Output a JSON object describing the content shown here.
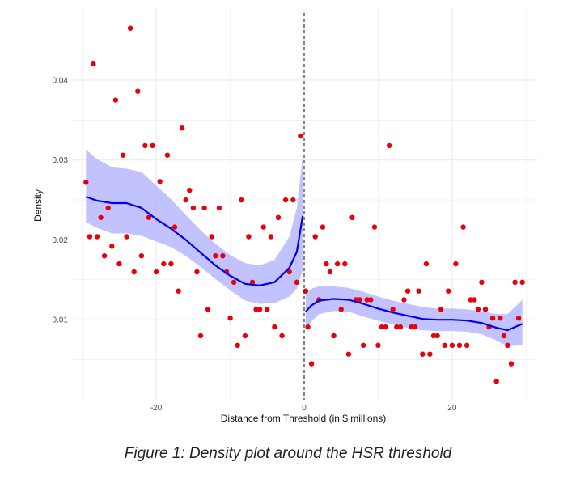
{
  "caption": "Figure 1: Density plot around the HSR threshold",
  "chart_data": {
    "type": "scatter",
    "title": "",
    "xlabel": "Distance from Threshold (in $ millions)",
    "ylabel": "Density",
    "xlim": [
      -31.5,
      31.5
    ],
    "ylim": [
      0.0,
      0.049
    ],
    "x_ticks": [
      -20,
      0,
      20
    ],
    "x_tick_labels": [
      "-20",
      "0",
      "20"
    ],
    "y_ticks": [
      0.01,
      0.02,
      0.03,
      0.04
    ],
    "y_tick_labels": [
      "0.01",
      "0.02",
      "0.03",
      "0.04"
    ],
    "grid": true,
    "cutoff_x": 0,
    "colors": {
      "points": "#e8000b",
      "fit": "#0000ee",
      "band": "#b3b3ff",
      "grid": "#ebebeb",
      "cutoff": "#333333"
    },
    "points": [
      [
        -29.5,
        0.0272
      ],
      [
        -29,
        0.0204
      ],
      [
        -28.5,
        0.042
      ],
      [
        -28,
        0.0204
      ],
      [
        -27.5,
        0.0228
      ],
      [
        -27,
        0.018
      ],
      [
        -26.5,
        0.024
      ],
      [
        -26,
        0.0192
      ],
      [
        -25.5,
        0.0375
      ],
      [
        -25,
        0.017
      ],
      [
        -24.5,
        0.0306
      ],
      [
        -24,
        0.0204
      ],
      [
        -23.5,
        0.0465
      ],
      [
        -23,
        0.016
      ],
      [
        -22.5,
        0.0386
      ],
      [
        -22,
        0.018
      ],
      [
        -21.5,
        0.0318
      ],
      [
        -21,
        0.0228
      ],
      [
        -20.5,
        0.0318
      ],
      [
        -20,
        0.016
      ],
      [
        -19.5,
        0.0273
      ],
      [
        -19,
        0.017
      ],
      [
        -18.5,
        0.0306
      ],
      [
        -18,
        0.017
      ],
      [
        -17.5,
        0.0216
      ],
      [
        -17,
        0.0136
      ],
      [
        -16.5,
        0.034
      ],
      [
        -16,
        0.025
      ],
      [
        -15.5,
        0.0262
      ],
      [
        -15,
        0.024
      ],
      [
        -14.5,
        0.016
      ],
      [
        -14,
        0.008
      ],
      [
        -13.5,
        0.024
      ],
      [
        -13,
        0.0113
      ],
      [
        -12.5,
        0.0204
      ],
      [
        -12,
        0.018
      ],
      [
        -11.5,
        0.024
      ],
      [
        -11,
        0.018
      ],
      [
        -10.5,
        0.016
      ],
      [
        -10,
        0.0102
      ],
      [
        -9.5,
        0.0147
      ],
      [
        -9,
        0.0068
      ],
      [
        -8.5,
        0.025
      ],
      [
        -8,
        0.008
      ],
      [
        -7.5,
        0.0204
      ],
      [
        -7,
        0.0147
      ],
      [
        -6.5,
        0.0113
      ],
      [
        -6,
        0.0113
      ],
      [
        -5.5,
        0.0216
      ],
      [
        -5,
        0.0113
      ],
      [
        -4.5,
        0.0204
      ],
      [
        -4,
        0.0091
      ],
      [
        -3.5,
        0.0228
      ],
      [
        -3,
        0.008
      ],
      [
        -2.5,
        0.025
      ],
      [
        -2,
        0.016
      ],
      [
        -1.5,
        0.025
      ],
      [
        -1,
        0.0147
      ],
      [
        -0.5,
        0.033
      ],
      [
        0.2,
        0.0136
      ],
      [
        0.5,
        0.0091
      ],
      [
        1,
        0.0045
      ],
      [
        1.5,
        0.0204
      ],
      [
        2,
        0.0125
      ],
      [
        2.5,
        0.0216
      ],
      [
        3,
        0.017
      ],
      [
        3.5,
        0.016
      ],
      [
        4,
        0.008
      ],
      [
        4.5,
        0.017
      ],
      [
        5,
        0.0113
      ],
      [
        5.5,
        0.017
      ],
      [
        6,
        0.0057
      ],
      [
        6.5,
        0.0228
      ],
      [
        7,
        0.0125
      ],
      [
        7.5,
        0.0125
      ],
      [
        8,
        0.0068
      ],
      [
        8.5,
        0.0125
      ],
      [
        9,
        0.0125
      ],
      [
        9.5,
        0.0216
      ],
      [
        10,
        0.0068
      ],
      [
        10.5,
        0.0091
      ],
      [
        11,
        0.0091
      ],
      [
        11.5,
        0.0318
      ],
      [
        12,
        0.0113
      ],
      [
        12.5,
        0.0091
      ],
      [
        13,
        0.0091
      ],
      [
        13.5,
        0.0125
      ],
      [
        14,
        0.0136
      ],
      [
        14.5,
        0.0091
      ],
      [
        15,
        0.0091
      ],
      [
        15.5,
        0.0136
      ],
      [
        16,
        0.0057
      ],
      [
        16.5,
        0.017
      ],
      [
        17,
        0.0057
      ],
      [
        17.5,
        0.008
      ],
      [
        18,
        0.008
      ],
      [
        18.5,
        0.0113
      ],
      [
        19,
        0.0068
      ],
      [
        19.5,
        0.0136
      ],
      [
        20,
        0.0068
      ],
      [
        20.5,
        0.017
      ],
      [
        21,
        0.0068
      ],
      [
        21.5,
        0.0216
      ],
      [
        22,
        0.0068
      ],
      [
        22.5,
        0.0125
      ],
      [
        23,
        0.0125
      ],
      [
        23.5,
        0.0113
      ],
      [
        24,
        0.0147
      ],
      [
        24.5,
        0.0113
      ],
      [
        25,
        0.0091
      ],
      [
        25.5,
        0.0102
      ],
      [
        26,
        0.0023
      ],
      [
        26.5,
        0.0102
      ],
      [
        27,
        0.008
      ],
      [
        27.5,
        0.0068
      ],
      [
        28,
        0.0045
      ],
      [
        28.5,
        0.0147
      ],
      [
        29,
        0.0102
      ],
      [
        29.5,
        0.0147
      ]
    ],
    "fit_left": {
      "x": [
        -29.5,
        -28,
        -26,
        -24,
        -22,
        -20,
        -18,
        -16,
        -14,
        -12,
        -10,
        -8,
        -6,
        -4,
        -2,
        -1,
        -0.2
      ],
      "y": [
        0.0254,
        0.0249,
        0.0246,
        0.0246,
        0.024,
        0.0226,
        0.0214,
        0.02,
        0.0184,
        0.0168,
        0.0155,
        0.0145,
        0.0143,
        0.0147,
        0.0165,
        0.0185,
        0.023
      ],
      "lower": [
        0.0222,
        0.0215,
        0.0208,
        0.0208,
        0.0205,
        0.0198,
        0.0191,
        0.018,
        0.0166,
        0.0151,
        0.0137,
        0.0124,
        0.012,
        0.0121,
        0.0129,
        0.0139,
        0.0162
      ],
      "upper": [
        0.0313,
        0.0301,
        0.0291,
        0.0289,
        0.0285,
        0.0268,
        0.0251,
        0.0231,
        0.0212,
        0.0195,
        0.0181,
        0.0171,
        0.0168,
        0.0175,
        0.0204,
        0.024,
        0.0305
      ]
    },
    "fit_right": {
      "x": [
        0.2,
        1,
        2,
        4,
        6,
        8,
        10,
        12,
        14,
        16,
        18,
        20,
        22,
        24,
        26,
        27.5,
        29.5
      ],
      "y": [
        0.011,
        0.0118,
        0.0124,
        0.0126,
        0.0125,
        0.012,
        0.0114,
        0.0109,
        0.0105,
        0.0101,
        0.01,
        0.01,
        0.0099,
        0.0096,
        0.009,
        0.0087,
        0.0095
      ],
      "lower": [
        0.0088,
        0.0098,
        0.0107,
        0.0111,
        0.011,
        0.0104,
        0.0099,
        0.0094,
        0.009,
        0.0087,
        0.0086,
        0.0086,
        0.0085,
        0.0082,
        0.0074,
        0.0067,
        0.0068
      ],
      "upper": [
        0.0133,
        0.0139,
        0.0142,
        0.0142,
        0.014,
        0.0135,
        0.0129,
        0.0124,
        0.012,
        0.0116,
        0.0114,
        0.0114,
        0.0113,
        0.0111,
        0.0107,
        0.0107,
        0.0125
      ]
    }
  }
}
